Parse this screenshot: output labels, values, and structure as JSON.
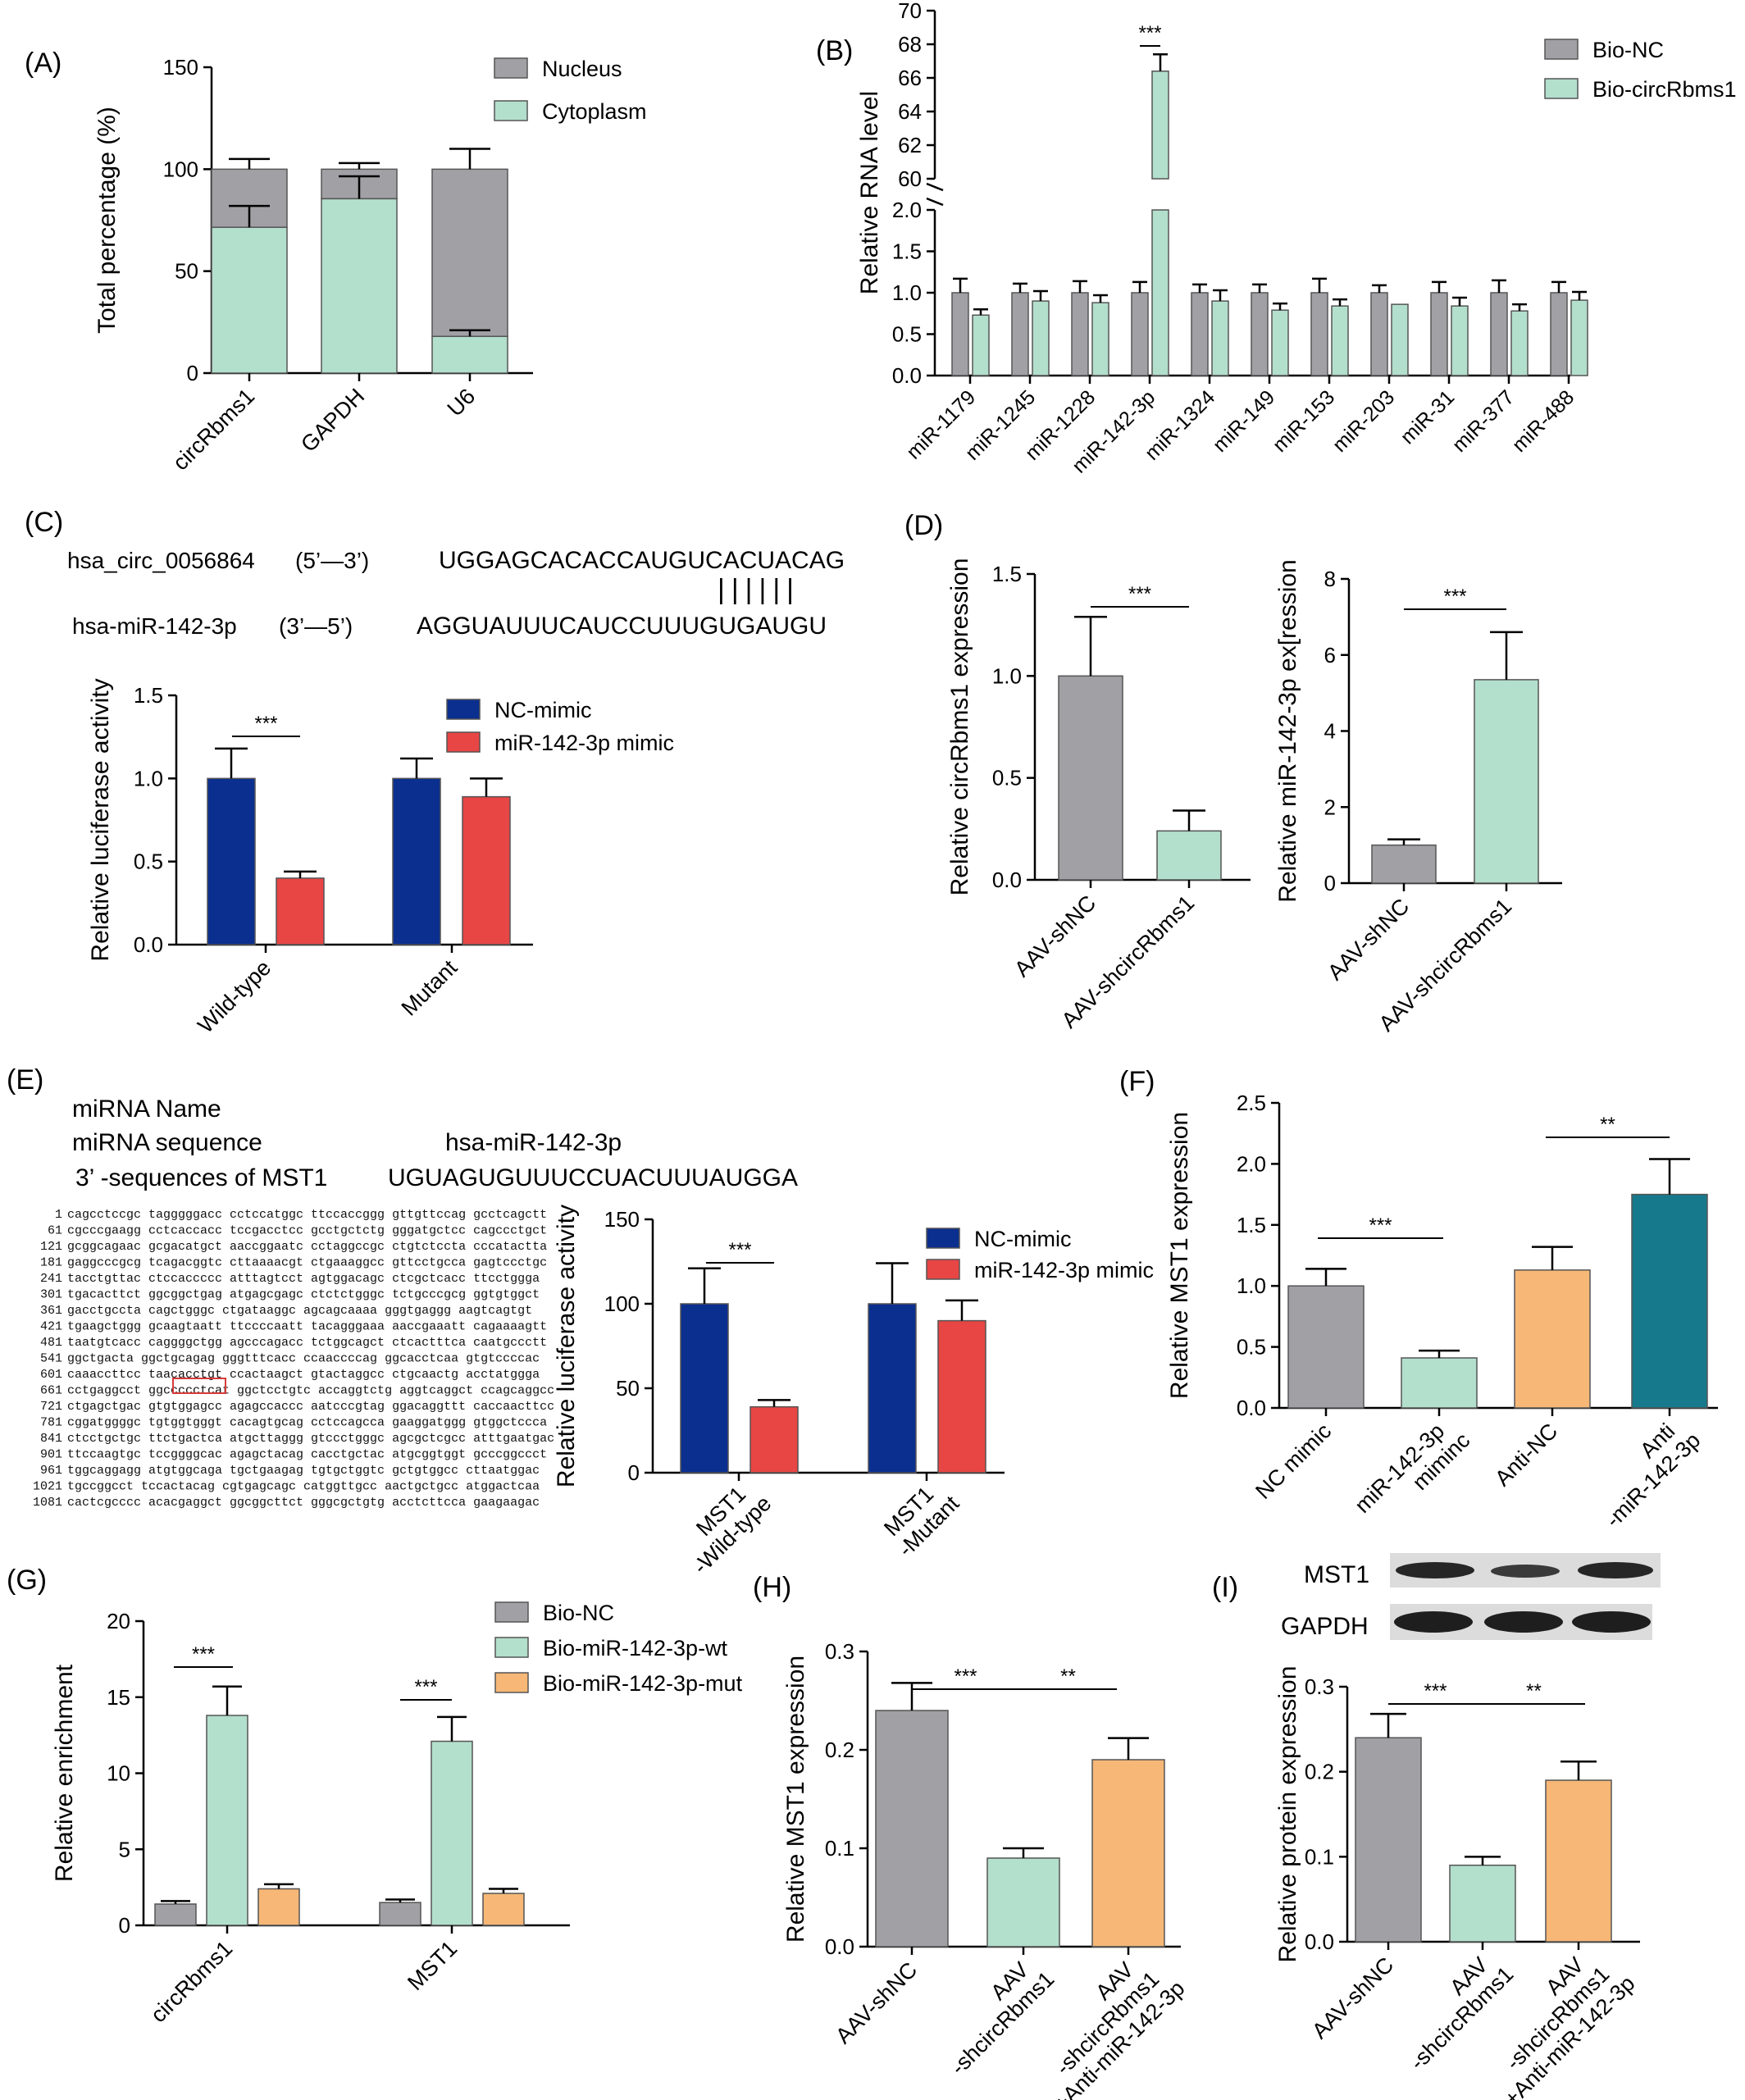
{
  "colors": {
    "gray": "#a1a0a5",
    "mint": "#b3dfcd",
    "navy": "#0a2f8f",
    "red": "#e84545",
    "orange": "#f6b777",
    "teal": "#17798c",
    "sig_red": "#d63a3a"
  },
  "panels": {
    "A": {
      "label": "(A)",
      "legend": [
        "Nucleus",
        "Cytoplasm"
      ]
    },
    "B": {
      "label": "(B)",
      "legend": [
        "Bio-NC",
        "Bio-circRbms1"
      ],
      "sig": "***"
    },
    "C": {
      "label": "(C)",
      "seq_name1": "hsa_circ_0056864",
      "seq_dir1": "(5’—3’)",
      "seq1": "UGGAGCACACCAUGUCACUACAG",
      "pairing": "||||||",
      "seq_name2": "hsa-miR-142-3p",
      "seq_dir2": "(3’—5’)",
      "seq2": "AGGUAUUUCAUCCUUUGUGAUGU",
      "legend": [
        "NC-mimic",
        "miR-142-3p mimic"
      ],
      "sig": "***"
    },
    "D": {
      "label": "(D)",
      "sig1": "***",
      "sig2": "***"
    },
    "E": {
      "label": "(E)",
      "row1": "miRNA Name",
      "row2": "miRNA sequence",
      "row2_value": "hsa-miR-142-3p",
      "row3": "3’ -sequences of MST1",
      "row3_value": "UGUAGUGUUUCCUACUUUAUGGA",
      "sequence_lines": [
        "1 cagcctccgc tagggggacc cctccatggc ttccaccggg gttgttccag gcctcagctt",
        "61 cgcccgaagg cctcaccacc tccgacctcc gcctgctctg gggatgctcc cagccctgct",
        "121 gcggcagaac gcgacatgct aaccggaatc cctaggccgc ctgtctccta cccatactta",
        "181 gaggcccgcg tcagacggtc cttaaaacgt ctgaaaggcc gttcctgcca gagtccctgc",
        "241 tacctgttac ctccaccccc atttagtcct agtggacagc ctcgctcacc ttcctggga",
        "301 tgacacttct ggcggctgag atgagcgagc ctctctgggc tctgcccgcg ggtgtggct",
        "361 gacctgccta cagctgggc ctgataaggc agcagcaaaa gggtgaggg aagtcagtgt",
        "421 tgaagctggg gcaagtaatt ttccccaatt tacagggaaa aaccgaaatt cagaaaagtt",
        "481 taatgtcacc caggggctgg agcccagacc tctggcagct ctcactttca caatgccctt",
        "541 ggctgacta ggctgcagag gggtttcacc ccaaccccag ggcacctcaa gtgtccccac",
        "601 caaaccttcc taacacctgt ccactaagct gtactaggcc ctgcaactg acctatggga",
        "661 cctgaggcct ggccccctcat ggctcctgtc accaggtctg aggtcaggct ccagcaggcc",
        "721 ctgagctgac gtgtggagcc agagccaccc aatcccgtag ggacaggttt caccaacttcc",
        "781 cggatggggc tgtggtgggt cacagtgcag cctccagcca gaaggatggg gtggctccca",
        "841 ctcctgctgc ttctgactca atgcttaggg gtccctgggc agcgctcgcc atttgaatgac",
        "901 ttccaagtgc tccggggcac agagctacag cacctgctac atgcggtggt gcccggccct",
        "961 tggcaggagg atgtggcaga tgctgaagag tgtgctggtc gctgtggcc cttaatggac",
        "1021 tgccggcct tccactacag cgtgagcagc catggttgcc aactgctgcc atggactcaa",
        "1081 cactcgcccc acacgaggct ggcggcttct gggcgctgtg acctcttcca gaagaagac"
      ],
      "legend": [
        "NC-mimic",
        "miR-142-3p mimic"
      ],
      "sig": "***"
    },
    "F": {
      "label": "(F)",
      "sig1": "***",
      "sig2": "**"
    },
    "G": {
      "label": "(G)",
      "legend": [
        "Bio-NC",
        "Bio-miR-142-3p-wt",
        "Bio-miR-142-3p-mut"
      ],
      "sig1": "***",
      "sig2": "***"
    },
    "H": {
      "label": "(H)",
      "sig1": "***",
      "sig2": "**"
    },
    "I": {
      "label": "(I)",
      "blot_labels": [
        "MST1",
        "GAPDH"
      ],
      "sig1": "***",
      "sig2": "**"
    }
  },
  "chart_data": [
    {
      "panel": "A",
      "type": "bar",
      "stacked": true,
      "categories": [
        "circRbms1",
        "GAPDH",
        "U6"
      ],
      "series": [
        {
          "name": "Nucleus",
          "values": [
            28.5,
            14.5,
            82
          ]
        },
        {
          "name": "Cytoplasm",
          "values": [
            71.5,
            85.5,
            18
          ]
        }
      ],
      "errors_total": [
        5,
        3,
        10
      ],
      "errors_cytoplasm": [
        10.5,
        11,
        3
      ],
      "ylabel": "Total percentage (%)",
      "ylim": [
        0,
        150
      ],
      "yticks": [
        "0",
        "50",
        "100",
        "150"
      ]
    },
    {
      "panel": "B",
      "type": "bar",
      "broken_axis": true,
      "categories": [
        "miR-1179",
        "miR-1245",
        "miR-1228",
        "miR-142-3p",
        "miR-1324",
        "miR-149",
        "miR-153",
        "miR-203",
        "miR-31",
        "miR-377",
        "miR-488"
      ],
      "series": [
        {
          "name": "Bio-NC",
          "values": [
            1,
            1,
            1,
            1,
            1,
            1,
            1,
            1,
            1,
            1,
            1
          ]
        },
        {
          "name": "Bio-circRbms1",
          "values": [
            0.73,
            0.9,
            0.88,
            66.4,
            0.9,
            0.79,
            0.84,
            0.86,
            0.84,
            0.78,
            0.91
          ]
        }
      ],
      "errors": [
        [
          0.17,
          0.11,
          0.14,
          0.13,
          0.1,
          0.1,
          0.17,
          0.09,
          0.13,
          0.15,
          0.13
        ],
        [
          0.07,
          0.12,
          0.09,
          1.0,
          0.13,
          0.08,
          0.08,
          0,
          0.1,
          0.08,
          0.1
        ]
      ],
      "ylabel": "Relative RNA level",
      "yticks_low": [
        "0.0",
        "0.5",
        "1.0",
        "1.5",
        "2.0"
      ],
      "yticks_high": [
        "60",
        "62",
        "64",
        "66",
        "68",
        "70"
      ]
    },
    {
      "panel": "C",
      "type": "bar",
      "categories": [
        "Wild-type",
        "Mutant"
      ],
      "series": [
        {
          "name": "NC-mimic",
          "values": [
            1.0,
            1.0
          ]
        },
        {
          "name": "miR-142-3p mimic",
          "values": [
            0.4,
            0.89
          ]
        }
      ],
      "errors": [
        [
          0.18,
          0.12
        ],
        [
          0.04,
          0.11
        ]
      ],
      "ylabel": "Relative luciferase activity",
      "ylim": [
        0,
        1.5
      ],
      "yticks": [
        "0.0",
        "0.5",
        "1.0",
        "1.5"
      ]
    },
    {
      "panel": "D1",
      "type": "bar",
      "categories": [
        "AAV-shNC",
        "AAV-shcircRbms1"
      ],
      "values": [
        1.0,
        0.24
      ],
      "errors": [
        0.29,
        0.1
      ],
      "ylabel": "Relative circRbms1 expression",
      "ylim": [
        0,
        1.5
      ],
      "yticks": [
        "0.0",
        "0.5",
        "1.0",
        "1.5"
      ]
    },
    {
      "panel": "D2",
      "type": "bar",
      "categories": [
        "AAV-shNC",
        "AAV-shcircRbms1"
      ],
      "values": [
        1.0,
        5.35
      ],
      "errors": [
        0.15,
        1.25
      ],
      "ylabel": "Relative miR-142-3p ex[ression",
      "ylim": [
        0,
        8
      ],
      "yticks": [
        "0",
        "2",
        "4",
        "6",
        "8"
      ]
    },
    {
      "panel": "E",
      "type": "bar",
      "categories": [
        "MST1\n-Wild-type",
        "MST1\n-Mutant"
      ],
      "series": [
        {
          "name": "NC-mimic",
          "values": [
            100,
            100
          ]
        },
        {
          "name": "miR-142-3p mimic",
          "values": [
            39,
            90
          ]
        }
      ],
      "errors": [
        [
          21,
          24
        ],
        [
          4,
          12
        ]
      ],
      "ylabel": "Relative luciferase activity",
      "ylim": [
        0,
        150
      ],
      "yticks": [
        "0",
        "50",
        "100",
        "150"
      ]
    },
    {
      "panel": "F",
      "type": "bar",
      "categories": [
        "NC mimic",
        "miR-142-3p\nmiminc",
        "Anti-NC",
        "Anti\n-miR-142-3p"
      ],
      "values": [
        1.0,
        0.41,
        1.13,
        1.75
      ],
      "errors": [
        0.14,
        0.06,
        0.19,
        0.29
      ],
      "ylabel": "Relative MST1 expression",
      "ylim": [
        0,
        2.5
      ],
      "yticks": [
        "0.0",
        "0.5",
        "1.0",
        "1.5",
        "2.0",
        "2.5"
      ]
    },
    {
      "panel": "G",
      "type": "bar",
      "categories": [
        "circRbms1",
        "MST1"
      ],
      "series": [
        {
          "name": "Bio-NC",
          "values": [
            1.4,
            1.5
          ]
        },
        {
          "name": "Bio-miR-142-3p-wt",
          "values": [
            13.8,
            12.1
          ]
        },
        {
          "name": "Bio-miR-142-3p-mut",
          "values": [
            2.4,
            2.1
          ]
        }
      ],
      "errors": [
        [
          0.2,
          0.2
        ],
        [
          1.9,
          1.6
        ],
        [
          0.3,
          0.3
        ]
      ],
      "ylabel": "Relative enrichment",
      "ylim": [
        0,
        20
      ],
      "yticks": [
        "0",
        "5",
        "10",
        "15",
        "20"
      ]
    },
    {
      "panel": "H",
      "type": "bar",
      "categories": [
        "AAV-shNC",
        "AAV\n-shcircRbms1",
        "AAV\n-shcircRbms1\n+Anti-miR-142-3p"
      ],
      "values": [
        0.24,
        0.09,
        0.19
      ],
      "errors": [
        0.028,
        0.01,
        0.022
      ],
      "ylabel": "Relative MST1 expression",
      "ylim": [
        0,
        0.3
      ],
      "yticks": [
        "0.0",
        "0.1",
        "0.2",
        "0.3"
      ]
    },
    {
      "panel": "I",
      "type": "bar",
      "categories": [
        "AAV-shNC",
        "AAV\n-shcircRbms1",
        "AAV\n-shcircRbms1\n+Anti-miR-142-3p"
      ],
      "values": [
        0.24,
        0.09,
        0.19
      ],
      "errors": [
        0.028,
        0.01,
        0.022
      ],
      "ylabel": "Relative protein expression",
      "ylim": [
        0,
        0.3
      ],
      "yticks": [
        "0.0",
        "0.1",
        "0.2",
        "0.3"
      ]
    }
  ]
}
